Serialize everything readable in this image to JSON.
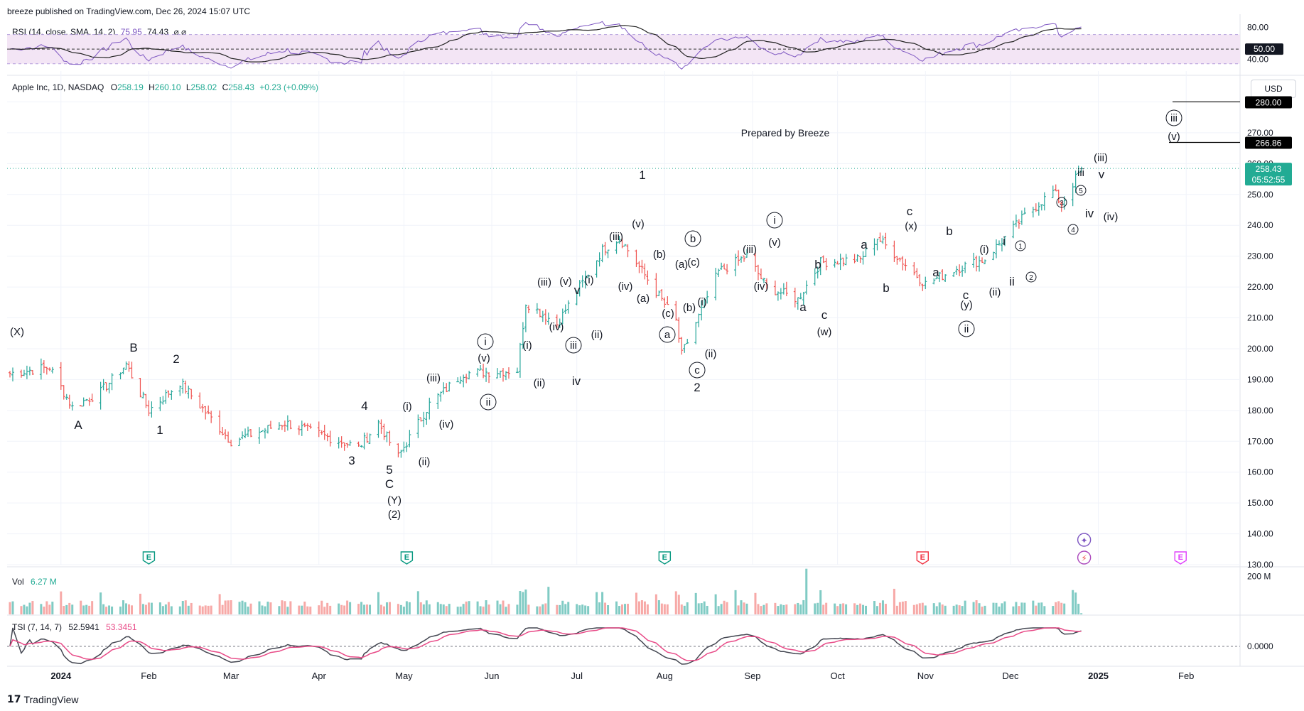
{
  "header": {
    "published": "breeze published on TradingView.com, Dec 26, 2024 15:07 UTC"
  },
  "rsi": {
    "label": "RSI (14, close, SMA, 14, 2)",
    "value": "75.95",
    "sma": "74.43",
    "icons": "⌀  ⌀",
    "ticks": [
      "80.00",
      "40.00"
    ],
    "level": "50.00"
  },
  "symbol": {
    "name": "Apple Inc, 1D, NASDAQ",
    "o_label": "O",
    "o": "258.19",
    "h_label": "H",
    "h": "260.10",
    "l_label": "L",
    "l": "258.02",
    "c_label": "C",
    "c": "258.43",
    "chg": "+0.23 (+0.09%)"
  },
  "currency": "USD",
  "watermark_note": "Prepared by Breeze",
  "price_tags": {
    "current": "258.43",
    "countdown": "05:52:55",
    "target1": "280.00",
    "target2": "266.86"
  },
  "volume": {
    "label": "Vol",
    "value": "6.27 M",
    "tick": "200 M"
  },
  "tsi": {
    "label": "TSI (7, 14, 7)",
    "value": "52.5941",
    "signal": "53.3451",
    "tick": "0.0000"
  },
  "x_axis_labels": [
    "2024",
    "Feb",
    "Mar",
    "Apr",
    "May",
    "Jun",
    "Jul",
    "Aug",
    "Sep",
    "Oct",
    "Nov",
    "Dec",
    "2025",
    "Feb"
  ],
  "footer": {
    "brand": "TradingView"
  },
  "earnings_markers": [
    {
      "label": "E",
      "state": "past"
    },
    {
      "label": "E",
      "state": "past"
    },
    {
      "label": "E",
      "state": "past"
    },
    {
      "label": "E",
      "state": "past-red"
    },
    {
      "label": "E",
      "state": "future"
    }
  ],
  "colors": {
    "up": "#26a69a",
    "down": "#ef5350",
    "rsi_line": "#7e57c2",
    "rsi_band": "#f3e5f5",
    "tsi_line": "#434651",
    "tsi_signal": "#e84a87",
    "accent": "#22ab94",
    "grid": "#f0f3fa"
  },
  "wave_labels": [
    "(X)",
    "A",
    "B",
    "1",
    "2",
    "3",
    "4",
    "5",
    "C",
    "(Y)",
    "(2)",
    "(i)",
    "(ii)",
    "(iii)",
    "(iv)",
    "i",
    "ii",
    "(v)",
    "(i)",
    "(ii)",
    "(iii)",
    "(iv)",
    "(v)",
    "iii",
    "iv",
    "v",
    "(i)",
    "(ii)",
    "(iii)",
    "(iv)",
    "(v)",
    "1",
    "(a)",
    "(b)",
    "(c)",
    "a",
    "b",
    "(a)",
    "(c)",
    "(b)",
    "c",
    "(i)",
    "(ii)",
    "2",
    "(iii)",
    "(iv)",
    "(v)",
    "i",
    "a",
    "b",
    "c",
    "(w)",
    "a",
    "b",
    "c",
    "(x)",
    "a",
    "b",
    "c",
    "(y)",
    "ii",
    "(i)",
    "(ii)",
    "i",
    "ii",
    "1",
    "2",
    "3",
    "4",
    "5",
    "iii",
    "iv",
    "v",
    "(iii)",
    "(iv)",
    "iii",
    "(v)"
  ],
  "chart_data": {
    "type": "ohlc",
    "title": "Apple Inc, 1D, NASDAQ",
    "ylim": [
      130,
      290
    ],
    "y_ticks": [
      130,
      140,
      150,
      160,
      170,
      180,
      190,
      200,
      210,
      220,
      230,
      240,
      250,
      260,
      270,
      280
    ],
    "x_range": [
      "2023-12-13",
      "2025-02-20"
    ],
    "anchors": [
      {
        "date": "2023-12-14",
        "close": 192
      },
      {
        "date": "2023-12-28",
        "close": 194
      },
      {
        "date": "2024-01-05",
        "close": 181
      },
      {
        "date": "2024-01-15",
        "close": 186
      },
      {
        "date": "2024-01-24",
        "close": 195
      },
      {
        "date": "2024-02-01",
        "close": 180
      },
      {
        "date": "2024-02-12",
        "close": 189
      },
      {
        "date": "2024-03-01",
        "close": 170
      },
      {
        "date": "2024-03-20",
        "close": 176
      },
      {
        "date": "2024-04-15",
        "close": 168
      },
      {
        "date": "2024-04-22",
        "close": 176
      },
      {
        "date": "2024-04-29",
        "close": 165
      },
      {
        "date": "2024-05-10",
        "close": 182
      },
      {
        "date": "2024-05-22",
        "close": 192
      },
      {
        "date": "2024-06-10",
        "close": 193
      },
      {
        "date": "2024-06-13",
        "close": 215
      },
      {
        "date": "2024-06-24",
        "close": 208
      },
      {
        "date": "2024-07-10",
        "close": 232
      },
      {
        "date": "2024-07-16",
        "close": 236
      },
      {
        "date": "2024-08-05",
        "close": 209
      },
      {
        "date": "2024-08-07",
        "close": 198
      },
      {
        "date": "2024-08-20",
        "close": 225
      },
      {
        "date": "2024-08-30",
        "close": 230
      },
      {
        "date": "2024-09-06",
        "close": 220
      },
      {
        "date": "2024-09-17",
        "close": 216
      },
      {
        "date": "2024-09-25",
        "close": 228
      },
      {
        "date": "2024-10-09",
        "close": 229
      },
      {
        "date": "2024-10-15",
        "close": 236
      },
      {
        "date": "2024-10-22",
        "close": 230
      },
      {
        "date": "2024-11-01",
        "close": 221
      },
      {
        "date": "2024-11-12",
        "close": 226
      },
      {
        "date": "2024-11-22",
        "close": 229
      },
      {
        "date": "2024-12-06",
        "close": 243
      },
      {
        "date": "2024-12-16",
        "close": 251
      },
      {
        "date": "2024-12-19",
        "close": 247
      },
      {
        "date": "2024-12-26",
        "close": 258.43
      }
    ],
    "targets": [
      280.0,
      266.86
    ],
    "rsi_levels": {
      "upper": 70,
      "mid": 50,
      "lower": 30
    },
    "rsi_ylim": [
      20,
      90
    ],
    "tsi_zero": 0,
    "volume_ylim_m": [
      0,
      250
    ]
  }
}
